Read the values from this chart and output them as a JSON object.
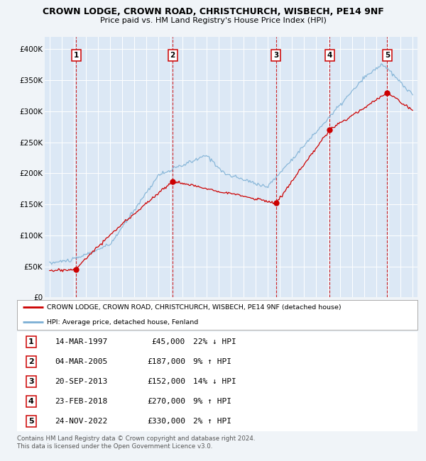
{
  "title": "CROWN LODGE, CROWN ROAD, CHRISTCHURCH, WISBECH, PE14 9NF",
  "subtitle": "Price paid vs. HM Land Registry's House Price Index (HPI)",
  "background_color": "#f0f4f8",
  "plot_bg_color": "#dce8f5",
  "ylim": [
    0,
    420000
  ],
  "yticks": [
    0,
    50000,
    100000,
    150000,
    200000,
    250000,
    300000,
    350000,
    400000
  ],
  "ytick_labels": [
    "£0",
    "£50K",
    "£100K",
    "£150K",
    "£200K",
    "£250K",
    "£300K",
    "£350K",
    "£400K"
  ],
  "xlim_start": 1994.6,
  "xlim_end": 2025.4,
  "transactions": [
    {
      "id": 1,
      "date_str": "14-MAR-1997",
      "year": 1997.21,
      "price": 45000,
      "hpi_pct": "22% ↓ HPI"
    },
    {
      "id": 2,
      "date_str": "04-MAR-2005",
      "year": 2005.17,
      "price": 187000,
      "hpi_pct": "9% ↑ HPI"
    },
    {
      "id": 3,
      "date_str": "20-SEP-2013",
      "year": 2013.72,
      "price": 152000,
      "hpi_pct": "14% ↓ HPI"
    },
    {
      "id": 4,
      "date_str": "23-FEB-2018",
      "year": 2018.14,
      "price": 270000,
      "hpi_pct": "9% ↑ HPI"
    },
    {
      "id": 5,
      "date_str": "24-NOV-2022",
      "year": 2022.9,
      "price": 330000,
      "hpi_pct": "2% ↑ HPI"
    }
  ],
  "legend_label_red": "CROWN LODGE, CROWN ROAD, CHRISTCHURCH, WISBECH, PE14 9NF (detached house)",
  "legend_label_blue": "HPI: Average price, detached house, Fenland",
  "footnote": "Contains HM Land Registry data © Crown copyright and database right 2024.\nThis data is licensed under the Open Government Licence v3.0.",
  "red_color": "#cc0000",
  "blue_color": "#7bafd4"
}
